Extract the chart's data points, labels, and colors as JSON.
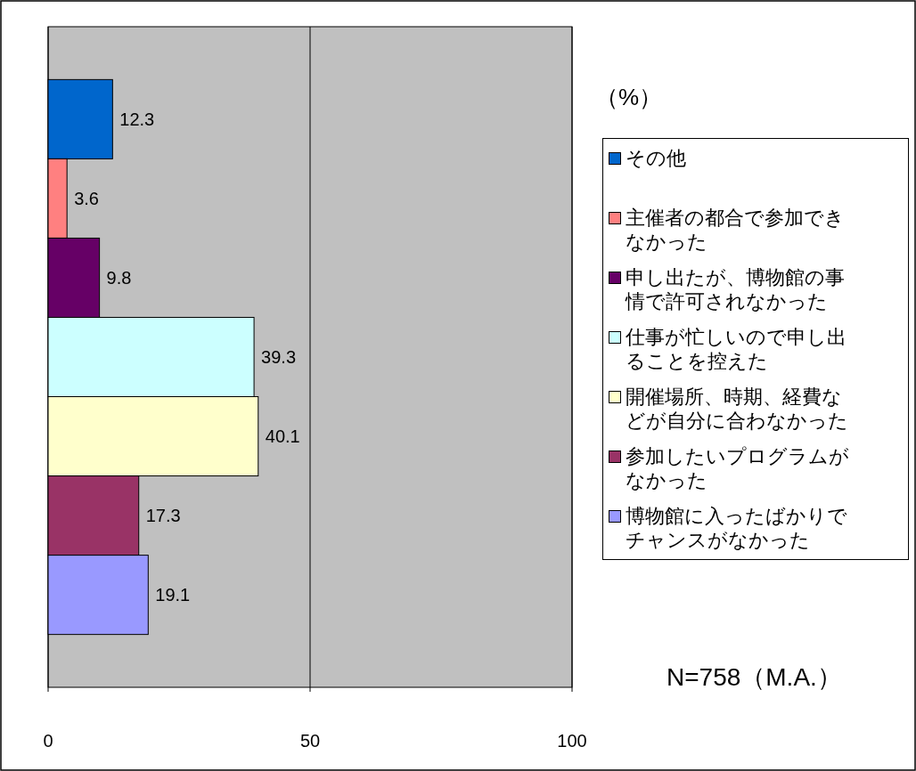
{
  "chart_data": {
    "type": "bar",
    "orientation": "horizontal",
    "categories": [
      null
    ],
    "series": [
      {
        "name": "その他",
        "color": "#0066cc",
        "values": [
          12.3
        ]
      },
      {
        "name": "主催者の都合で参加できなかった",
        "color": "#ff8080",
        "values": [
          3.6
        ]
      },
      {
        "name": "申し出たが、博物館の事情で許可されなかった",
        "color": "#660066",
        "values": [
          9.8
        ]
      },
      {
        "name": "仕事が忙しいので申し出ることを控えた",
        "color": "#ccffff",
        "values": [
          39.3
        ]
      },
      {
        "name": "開催場所、時期、経費などが自分に合わなかった",
        "color": "#ffffcc",
        "values": [
          40.1
        ]
      },
      {
        "name": "参加したいプログラムがなかった",
        "color": "#993366",
        "values": [
          17.3
        ]
      },
      {
        "name": "博物館に入ったばかりでチャンスがなかった",
        "color": "#9999ff",
        "values": [
          19.1
        ]
      }
    ],
    "xlim": [
      0,
      100
    ],
    "xticks": [
      0,
      50,
      100
    ],
    "grid": "x",
    "data_labels": true,
    "legend": "right",
    "annotations": [
      "（%）",
      "N=758（M.A.）"
    ]
  }
}
